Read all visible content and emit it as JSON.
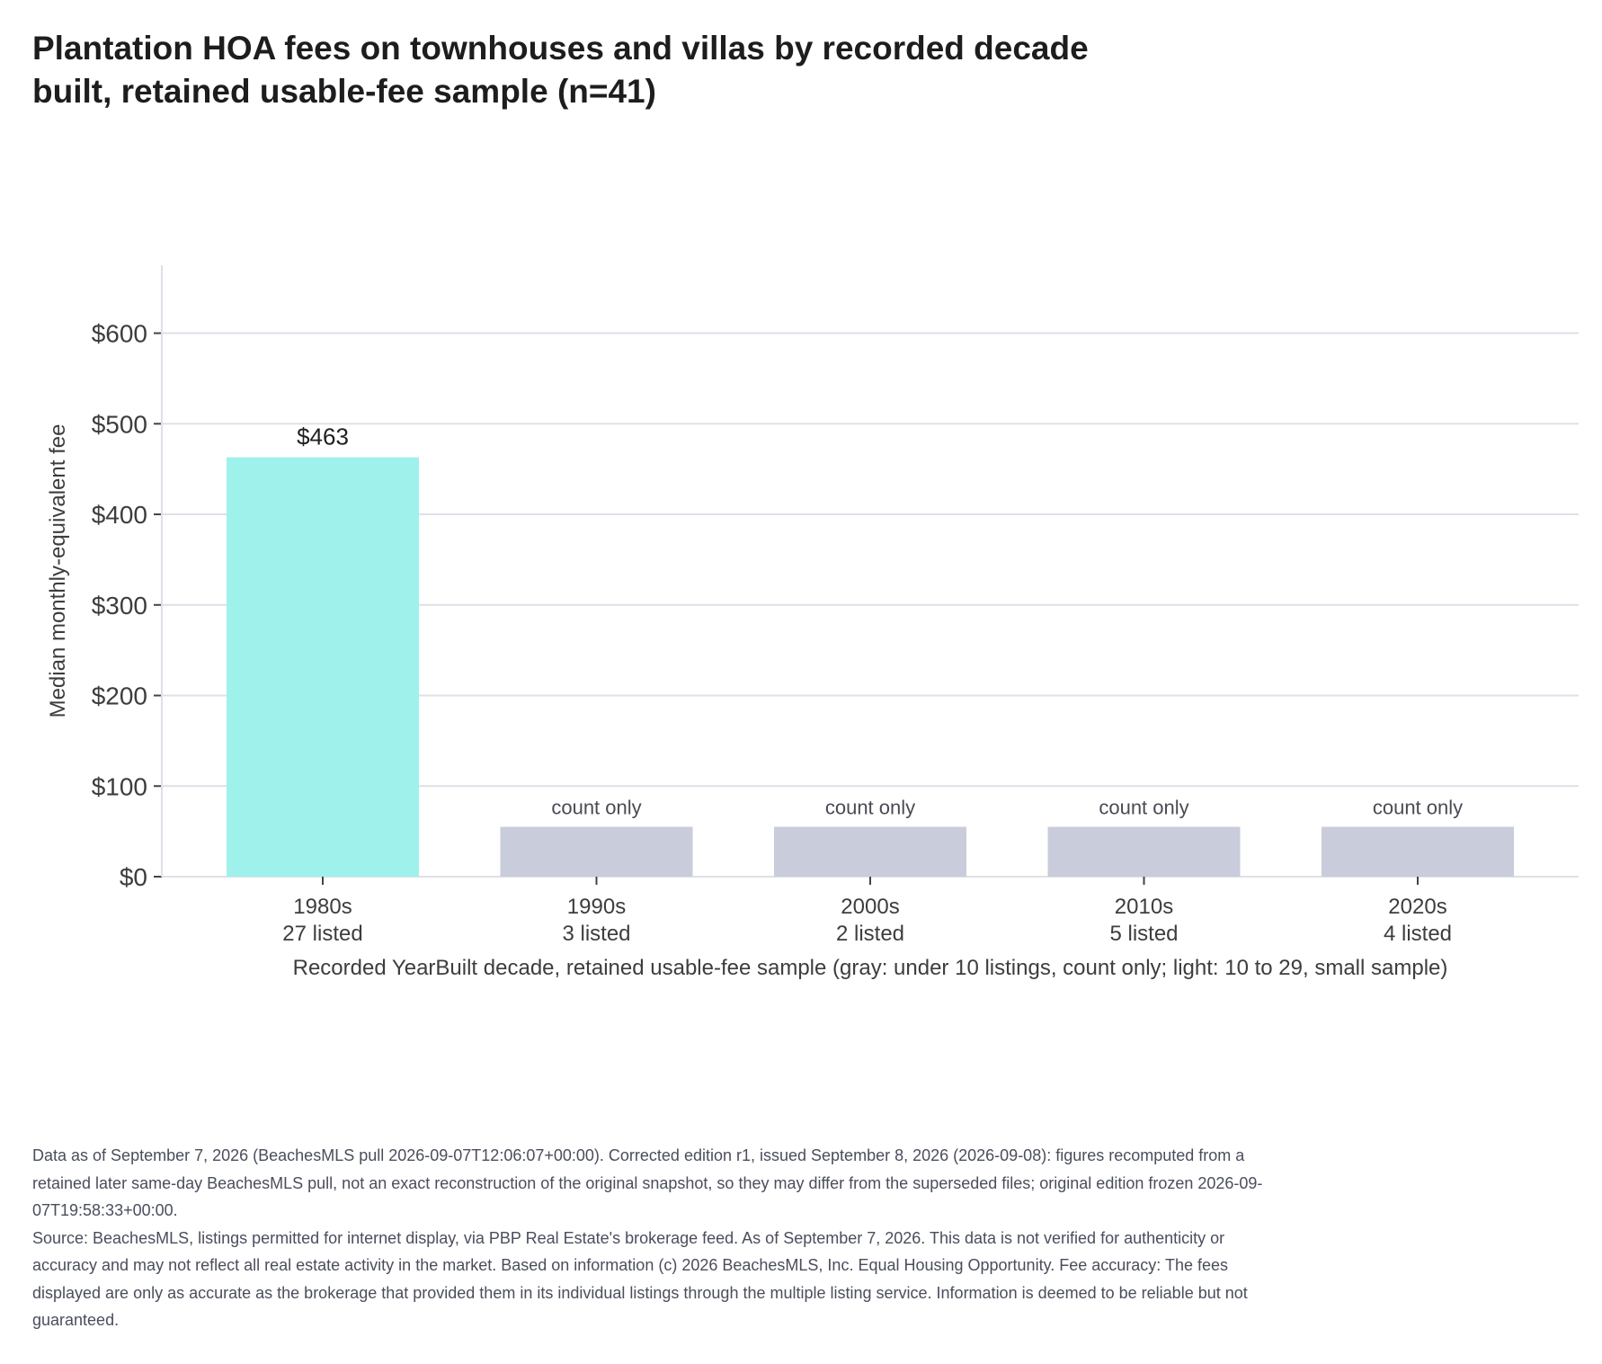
{
  "chart_data": {
    "type": "bar",
    "title": "Plantation HOA fees on townhouses and villas by recorded decade built, retained usable-fee sample (n=41)",
    "ylabel": "Median monthly-equivalent fee",
    "xlabel": "Recorded YearBuilt decade, retained usable-fee sample (gray: under 10 listings, count only; light: 10 to 29, small sample)",
    "ylim": [
      0,
      675
    ],
    "yticks": [
      0,
      100,
      200,
      300,
      400,
      500,
      600
    ],
    "ytick_labels": [
      "$0",
      "$100",
      "$200",
      "$300",
      "$400",
      "$500",
      "$600"
    ],
    "grid": true,
    "categories": [
      "1980s",
      "1990s",
      "2000s",
      "2010s",
      "2020s"
    ],
    "counts_text": [
      "27 listed",
      "3 listed",
      "2 listed",
      "5 listed",
      "4 listed"
    ],
    "values": [
      463,
      null,
      null,
      null,
      null
    ],
    "count_only_placeholder_value": 55,
    "data_labels": [
      "$463",
      "count only",
      "count only",
      "count only",
      "count only"
    ],
    "bar_colors": [
      "#9ff2eb",
      "#c9ccda",
      "#c9ccda",
      "#c9ccda",
      "#c9ccda"
    ]
  },
  "footnote": {
    "line1": "Data as of September 7, 2026 (BeachesMLS pull 2026-09-07T12:06:07+00:00). Corrected edition r1, issued September 8, 2026 (2026-09-08): figures recomputed from a retained later same-day BeachesMLS pull, not an exact reconstruction of the original snapshot, so they may differ from the superseded files; original edition frozen 2026-09-07T19:58:33+00:00.",
    "line2": "Source: BeachesMLS, listings permitted for internet display, via PBP Real Estate's brokerage feed. As of September 7, 2026. This data is not verified for authenticity or accuracy and may not reflect all real estate activity in the market. Based on information (c) 2026 BeachesMLS, Inc. Equal Housing Opportunity. Fee accuracy: The fees displayed are only as accurate as the brokerage that provided them in its individual listings through the multiple listing service. Information is deemed to be reliable but not guaranteed."
  }
}
